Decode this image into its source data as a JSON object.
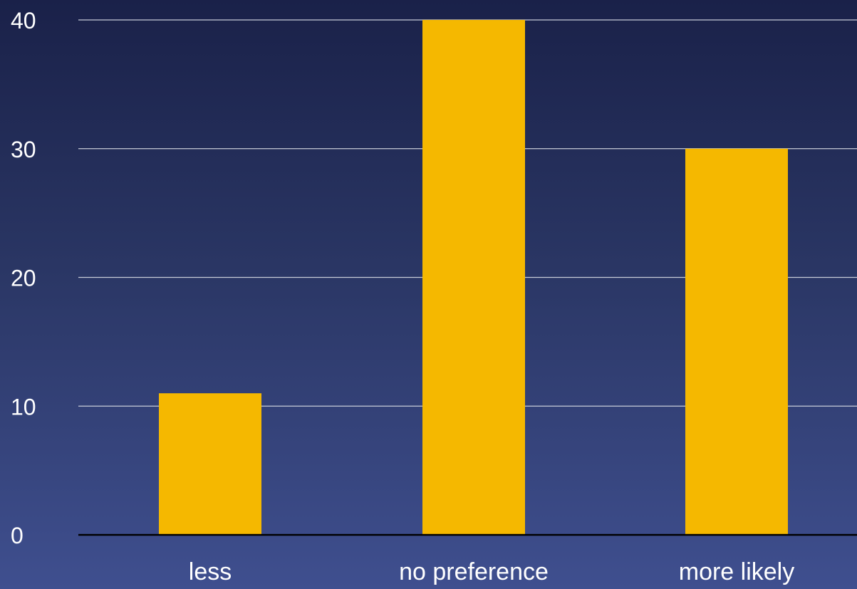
{
  "chart_data": {
    "type": "bar",
    "categories": [
      "less",
      "no preference",
      "more likely"
    ],
    "values": [
      11,
      40,
      30
    ],
    "ylim": [
      0,
      40
    ],
    "yticks": [
      0,
      10,
      20,
      30,
      40
    ],
    "grid": true,
    "title": "",
    "xlabel": "",
    "ylabel": "",
    "bar_color": "#f5b800",
    "grid_color": "#c8ccd8",
    "axis_color": "#000000"
  }
}
